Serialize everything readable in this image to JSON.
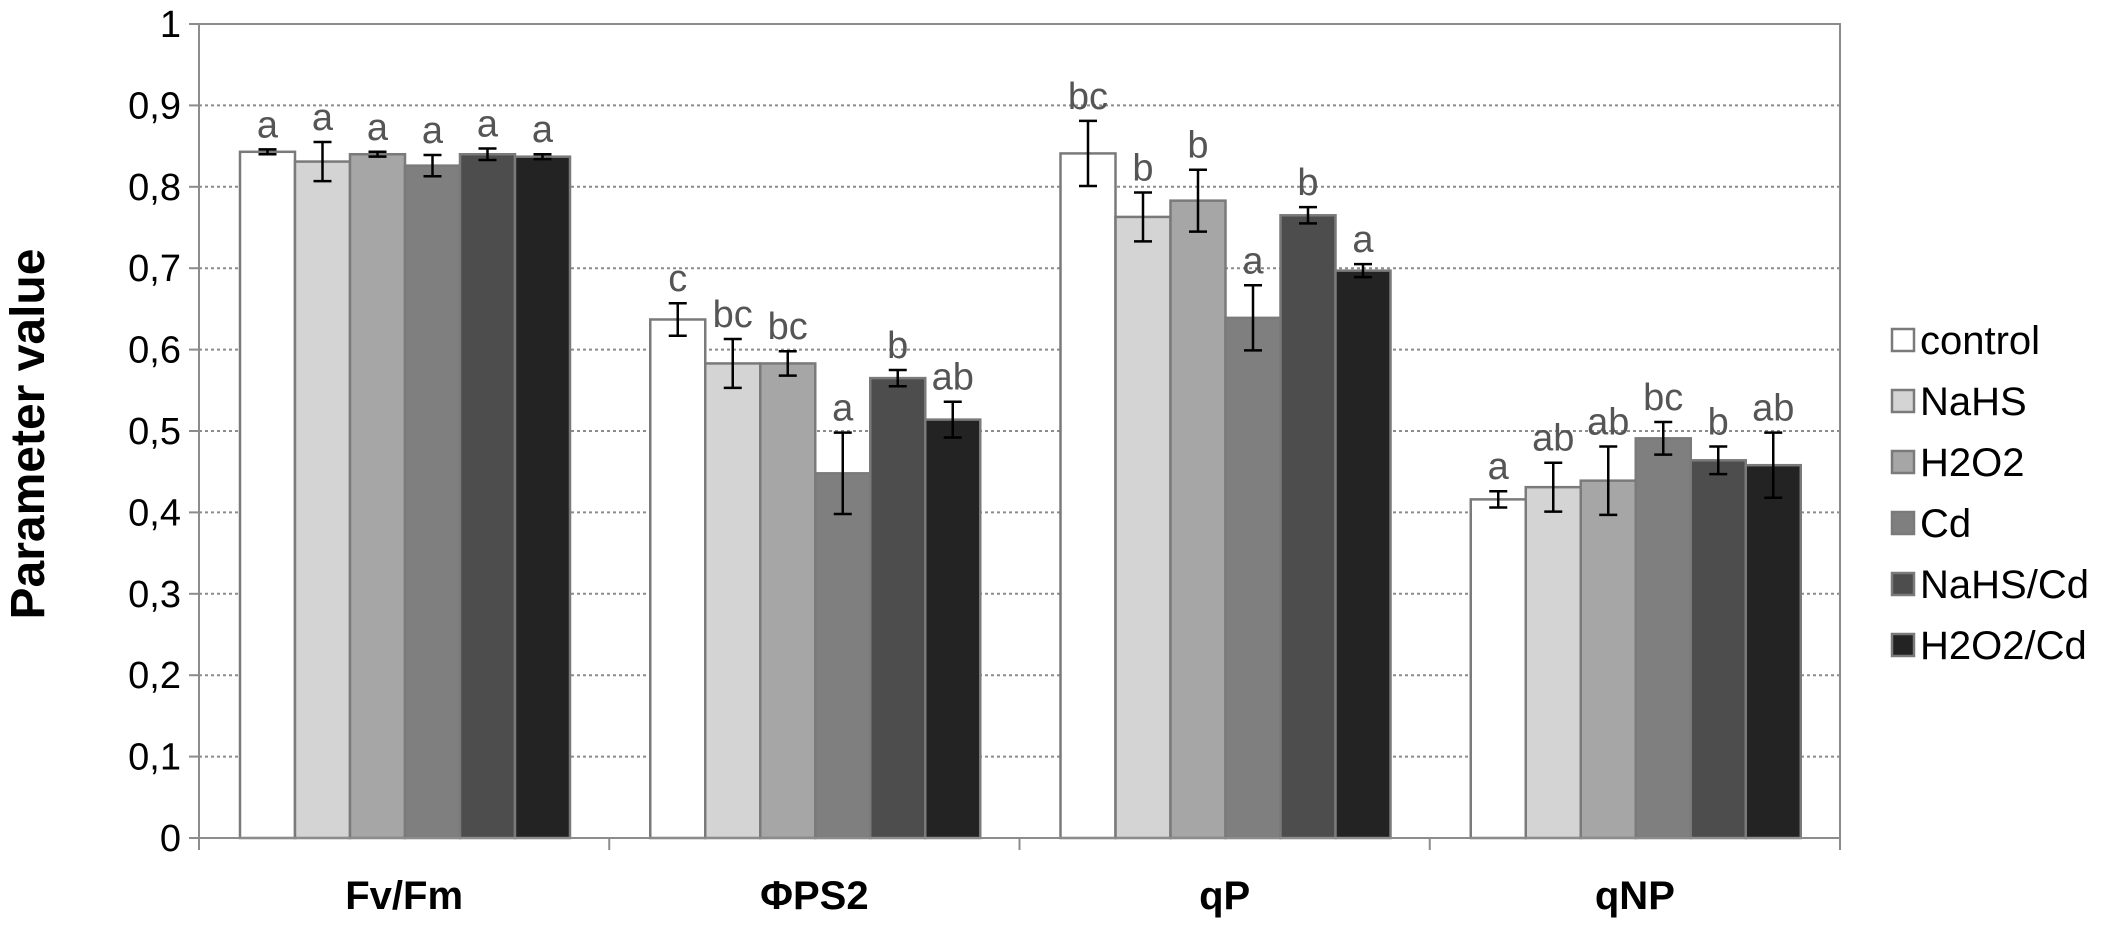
{
  "chart_data": {
    "type": "bar",
    "ylabel": "Parameter value",
    "ylim": [
      0,
      1
    ],
    "yticks": [
      "0",
      "0,1",
      "0,2",
      "0,3",
      "0,4",
      "0,5",
      "0,6",
      "0,7",
      "0,8",
      "0,9",
      "1"
    ],
    "grid": true,
    "legend_position": "right",
    "categories": [
      "Fv/Fm",
      "ΦPS2",
      "qP",
      "qNP"
    ],
    "series": [
      {
        "name": "control",
        "color": "#ffffff",
        "values": [
          0.843,
          0.637,
          0.841,
          0.416
        ],
        "errors": [
          0.003,
          0.02,
          0.04,
          0.01
        ],
        "labels": [
          "a",
          "c",
          "bc",
          "a"
        ]
      },
      {
        "name": "NaHS",
        "color": "#d4d4d4",
        "values": [
          0.831,
          0.583,
          0.763,
          0.431
        ],
        "errors": [
          0.024,
          0.03,
          0.03,
          0.03
        ],
        "labels": [
          "a",
          "bc",
          "b",
          "ab"
        ]
      },
      {
        "name": "H2O2",
        "color": "#a6a6a6",
        "values": [
          0.84,
          0.583,
          0.783,
          0.439
        ],
        "errors": [
          0.003,
          0.015,
          0.038,
          0.042
        ],
        "labels": [
          "a",
          "bc",
          "b",
          "ab"
        ]
      },
      {
        "name": "Cd",
        "color": "#7f7f7f",
        "values": [
          0.826,
          0.448,
          0.639,
          0.491
        ],
        "errors": [
          0.013,
          0.05,
          0.04,
          0.02
        ],
        "labels": [
          "a",
          "a",
          "a",
          "bc"
        ]
      },
      {
        "name": "NaHS/Cd",
        "color": "#4d4d4d",
        "values": [
          0.84,
          0.565,
          0.765,
          0.464
        ],
        "errors": [
          0.007,
          0.01,
          0.01,
          0.017
        ],
        "labels": [
          "a",
          "b",
          "b",
          "b"
        ]
      },
      {
        "name": "H2O2/Cd",
        "color": "#232323",
        "values": [
          0.837,
          0.514,
          0.697,
          0.458
        ],
        "errors": [
          0.003,
          0.022,
          0.008,
          0.04
        ],
        "labels": [
          "a",
          "ab",
          "a",
          "ab"
        ]
      }
    ]
  }
}
